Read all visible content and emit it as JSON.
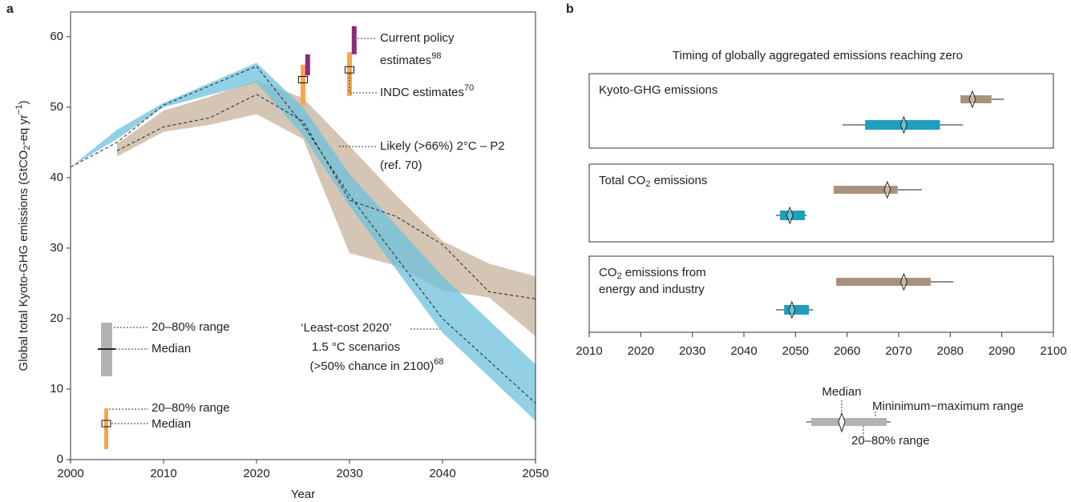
{
  "chart_data": [
    {
      "type": "area",
      "label": "a",
      "xlim": [
        2000,
        2050
      ],
      "ylim": [
        0,
        63.5
      ],
      "xticks": [
        2000,
        2010,
        2020,
        2030,
        2040,
        2050
      ],
      "yticks": [
        0,
        10,
        20,
        30,
        40,
        50,
        60
      ],
      "xlabel": "Year",
      "ylabel": [
        "Global total Kyoto-GHG emissions (GtCO",
        {
          "sub": "2"
        },
        "-eq yr",
        {
          "sup": "−1"
        },
        ")"
      ],
      "bands": [
        {
          "color": "#d5c5b4",
          "opacity": 1,
          "x": [
            2005,
            2010,
            2015,
            2020,
            2025,
            2030,
            2035,
            2040,
            2045,
            2050
          ],
          "lower": [
            43,
            46.5,
            47.5,
            49,
            45.5,
            29.3,
            27.5,
            24,
            23,
            17.5
          ],
          "upper": [
            44.8,
            49.5,
            51.5,
            53.8,
            51.3,
            44.5,
            37.5,
            31,
            27.8,
            26
          ],
          "median": [
            43.8,
            47.2,
            48.5,
            51.8,
            48,
            36.8,
            34.5,
            30.5,
            23.8,
            22.8
          ],
          "annotation": [
            [
              "Likely (>66%) 2°C – P2"
            ],
            [
              "(ref. 70)"
            ]
          ]
        },
        {
          "color": "#6cc0dc",
          "opacity": 0.75,
          "x": [
            2000,
            2005,
            2010,
            2020,
            2025,
            2030,
            2040,
            2050
          ],
          "lower": [
            41.5,
            45.5,
            50,
            53.5,
            46,
            36,
            18,
            5.5
          ],
          "upper": [
            41.5,
            46.8,
            50.6,
            56.3,
            50,
            40.5,
            26,
            13.5
          ],
          "median": [
            41.5,
            45,
            50.3,
            55.8,
            47.5,
            37.5,
            20,
            8
          ],
          "annotation": [
            [
              "‘Least-cost 2020’"
            ],
            [
              "1.5 °C scenarios"
            ],
            [
              "(>50% chance in 2100)",
              {
                "sup": "68"
              }
            ]
          ]
        }
      ],
      "ranges": [
        {
          "color": "#f7a54b",
          "x": [
            2025,
            2030
          ],
          "low": [
            50.3,
            51.6
          ],
          "high": [
            56,
            57.8
          ],
          "median": [
            53.9,
            55.3
          ],
          "annotation": [
            [
              "INDC estimates",
              {
                "sup": "70"
              }
            ]
          ]
        },
        {
          "color": "#8a2b7f",
          "x": [
            2025.5,
            2030.5
          ],
          "low": [
            54.5,
            57.5
          ],
          "high": [
            57.5,
            61.5
          ],
          "annotation": [
            [
              "Current policy"
            ],
            [
              "estimates",
              {
                "sup": "98"
              }
            ]
          ]
        }
      ],
      "key": [
        {
          "range": "20–80% range",
          "median": "Median"
        },
        {
          "range": "20–80% range",
          "median": "Median"
        }
      ]
    },
    {
      "type": "box",
      "label": "b",
      "title": "Timing of globally aggregated emissions reaching zero",
      "xlim": [
        2010,
        2100
      ],
      "xticks": [
        2010,
        2020,
        2030,
        2040,
        2050,
        2060,
        2070,
        2080,
        2090,
        2100
      ],
      "groups": [
        {
          "title": [
            [
              "Kyoto-GHG emissions"
            ]
          ],
          "rows": [
            {
              "color": "#a8927b",
              "min": 2082,
              "q20": 2082,
              "median": 2084.3,
              "q80": 2088,
              "max": 2090.4
            },
            {
              "color": "#1f9ebd",
              "min": 2059.1,
              "q20": 2063.5,
              "median": 2071,
              "q80": 2078,
              "max": 2082.5
            }
          ]
        },
        {
          "title": [
            [
              "Total CO",
              {
                "sub": "2"
              },
              " emissions"
            ]
          ],
          "rows": [
            {
              "color": "#a8927b",
              "min": 2057.4,
              "q20": 2057.4,
              "median": 2067.8,
              "q80": 2069.8,
              "max": 2074.5
            },
            {
              "color": "#1f9ebd",
              "min": 2046.2,
              "q20": 2047,
              "median": 2048.9,
              "q80": 2051.8,
              "max": 2052.2
            }
          ]
        },
        {
          "title": [
            [
              "CO",
              {
                "sub": "2"
              },
              " emissions from"
            ],
            [
              "energy and industry"
            ]
          ],
          "rows": [
            {
              "color": "#a8927b",
              "min": 2057.9,
              "q20": 2057.9,
              "median": 2071,
              "q80": 2076.2,
              "max": 2080.6
            },
            {
              "color": "#1f9ebd",
              "min": 2046.2,
              "q20": 2047.8,
              "median": 2049.3,
              "q80": 2052.6,
              "max": 2053.4
            }
          ]
        }
      ],
      "key": {
        "median": "Median",
        "minmax": "Mininimum−maximum range",
        "range": "20–80% range"
      }
    }
  ]
}
